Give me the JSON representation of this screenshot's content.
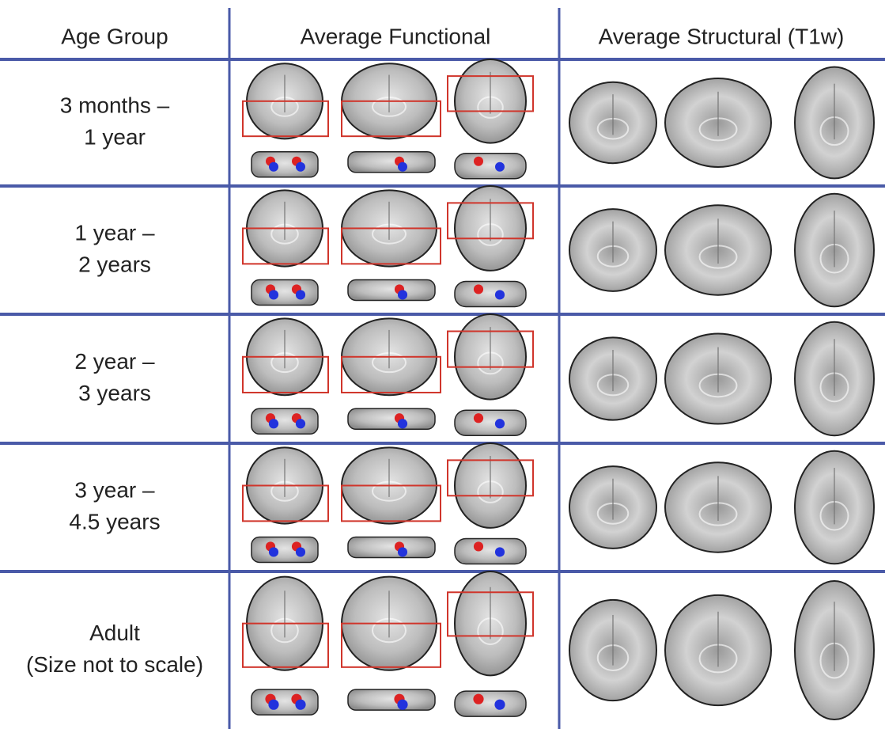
{
  "header": {
    "age_group": "Age Group",
    "functional": "Average Functional",
    "structural": "Average Structural (T1w)"
  },
  "rows": [
    {
      "label": [
        "3 months –",
        "1 year"
      ]
    },
    {
      "label": [
        "1 year –",
        "2 years"
      ]
    },
    {
      "label": [
        "2 year –",
        "3 years"
      ]
    },
    {
      "label": [
        "3 year –",
        "4.5 years"
      ]
    },
    {
      "label": [
        "Adult",
        "(Size not to scale)"
      ]
    }
  ]
}
